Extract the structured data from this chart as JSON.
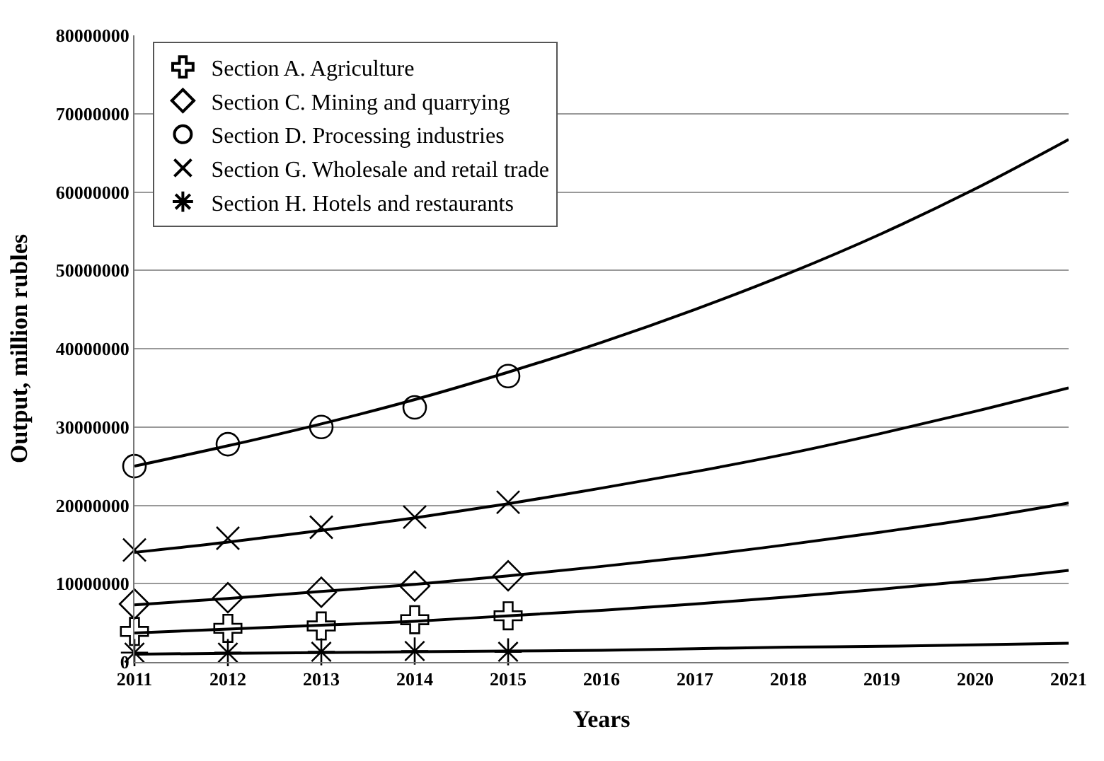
{
  "chart_data": {
    "type": "scatter",
    "xlabel": "Years",
    "ylabel": "Output, million rubles",
    "x": [
      2011,
      2012,
      2013,
      2014,
      2015
    ],
    "xlim": [
      2011,
      2021
    ],
    "xticks": [
      2011,
      2012,
      2013,
      2014,
      2015,
      2016,
      2017,
      2018,
      2019,
      2020,
      2021
    ],
    "ylim": [
      0,
      80000000
    ],
    "yticks": [
      0,
      10000000,
      20000000,
      30000000,
      40000000,
      50000000,
      60000000,
      70000000,
      80000000
    ],
    "grid": "y",
    "legend": "top left",
    "series": [
      {
        "name": "Section A. Agriculture",
        "color": "#000000",
        "marker": "cross",
        "values": [
          3900000,
          4300000,
          4600000,
          5400000,
          5900000
        ]
      },
      {
        "name": "Section C. Mining and quarrying",
        "color": "#000000",
        "marker": "diamond",
        "values": [
          7400000,
          8200000,
          8900000,
          9700000,
          11000000
        ]
      },
      {
        "name": "Section D. Processing industries",
        "color": "#000000",
        "marker": "circle",
        "values": [
          25000000,
          27800000,
          30000000,
          32500000,
          36500000
        ]
      },
      {
        "name": "Section G. Wholesale and retail trade",
        "color": "#000000",
        "marker": "x",
        "values": [
          14300000,
          15800000,
          17200000,
          18500000,
          20400000
        ]
      },
      {
        "name": "Section H. Hotels and restaurants",
        "color": "#000000",
        "values": [
          1200000,
          1200000,
          1300000,
          1400000,
          1300000
        ]
      },
      {
        "type": "line",
        "color": "#000000",
        "marker": "none",
        "x": [
          2011,
          2012,
          2013,
          2014,
          2015,
          2016,
          2017,
          2018,
          2019,
          2020,
          2021
        ],
        "values": [
          3700000,
          4200000,
          4700000,
          5200000,
          5900000,
          6600000,
          7400000,
          8300000,
          9300000,
          10400000,
          11700000
        ]
      },
      {
        "type": "line",
        "color": "#000000",
        "marker": "none",
        "x": [
          2011,
          2012,
          2013,
          2014,
          2015,
          2016,
          2017,
          2018,
          2019,
          2020,
          2021
        ],
        "values": [
          7300000,
          8100000,
          9000000,
          9900000,
          11000000,
          12200000,
          13500000,
          15000000,
          16600000,
          18300000,
          20300000
        ]
      },
      {
        "type": "line",
        "color": "#000000",
        "marker": "none",
        "x": [
          2011,
          2012,
          2013,
          2014,
          2015,
          2016,
          2017,
          2018,
          2019,
          2020,
          2021
        ],
        "values": [
          25000000,
          27600000,
          30400000,
          33500000,
          37000000,
          40800000,
          45000000,
          49600000,
          54700000,
          60400000,
          66700000
        ]
      },
      {
        "type": "line",
        "color": "#000000",
        "marker": "none",
        "x": [
          2011,
          2012,
          2013,
          2014,
          2015,
          2016,
          2017,
          2018,
          2019,
          2020,
          2021
        ],
        "values": [
          14000000,
          15300000,
          16800000,
          18400000,
          20200000,
          22200000,
          24300000,
          26600000,
          29200000,
          32000000,
          35000000
        ]
      },
      {
        "type": "line",
        "color": "#000000",
        "marker": "none",
        "x": [
          2011,
          2012,
          2013,
          2014,
          2015,
          2016,
          2017,
          2018,
          2019,
          2020,
          2021
        ],
        "values": [
          1000000,
          1100000,
          1200000,
          1300000,
          1400000,
          1500000,
          1700000,
          1900000,
          2000000,
          2200000,
          2400000
        ]
      }
    ]
  }
}
